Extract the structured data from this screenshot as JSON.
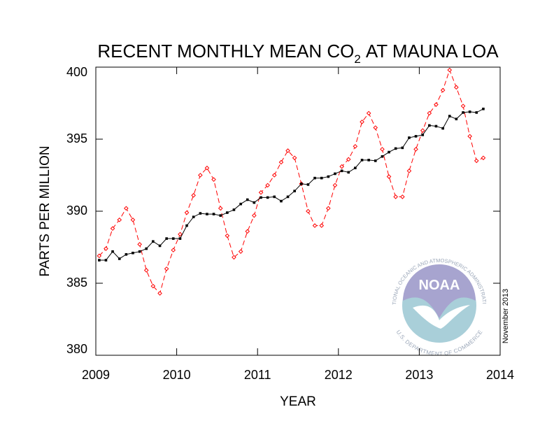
{
  "chart_data": {
    "type": "line",
    "title_main": "RECENT MONTHLY MEAN CO",
    "title_sub": "2",
    "title_end": "AT MAUNA LOA",
    "xlabel": "YEAR",
    "ylabel": "PARTS PER MILLION",
    "note": "November 2013",
    "logo": {
      "name": "NOAA",
      "ring_top": "NATIONAL OCEANIC AND ATMOSPHERIC ADMINISTRATION",
      "ring_bottom": "U.S. DEPARTMENT OF COMMERCE"
    },
    "xlim": [
      2009,
      2014
    ],
    "xticks": [
      2009,
      2010,
      2011,
      2012,
      2013,
      2014
    ],
    "ylim": [
      380,
      400
    ],
    "yticks": [
      380,
      385,
      390,
      395,
      400
    ],
    "x": [
      2009.042,
      2009.125,
      2009.208,
      2009.292,
      2009.375,
      2009.458,
      2009.542,
      2009.625,
      2009.708,
      2009.792,
      2009.875,
      2009.958,
      2010.042,
      2010.125,
      2010.208,
      2010.292,
      2010.375,
      2010.458,
      2010.542,
      2010.625,
      2010.708,
      2010.792,
      2010.875,
      2010.958,
      2011.042,
      2011.125,
      2011.208,
      2011.292,
      2011.375,
      2011.458,
      2011.542,
      2011.625,
      2011.708,
      2011.792,
      2011.875,
      2011.958,
      2012.042,
      2012.125,
      2012.208,
      2012.292,
      2012.375,
      2012.458,
      2012.542,
      2012.625,
      2012.708,
      2012.792,
      2012.875,
      2012.958,
      2013.042,
      2013.125,
      2013.208,
      2013.292,
      2013.375,
      2013.458,
      2013.542,
      2013.625,
      2013.708,
      2013.792
    ],
    "series": [
      {
        "color": "#ff0000",
        "style": "dashed",
        "marker": "diamond",
        "values": [
          386.9,
          387.4,
          388.8,
          389.4,
          390.2,
          389.4,
          387.7,
          385.9,
          384.8,
          384.3,
          386.0,
          387.3,
          388.4,
          389.9,
          391.1,
          392.5,
          393.0,
          392.2,
          390.2,
          388.3,
          386.8,
          387.2,
          388.6,
          389.7,
          391.3,
          391.8,
          392.5,
          393.4,
          394.2,
          393.7,
          391.9,
          390.0,
          389.0,
          389.0,
          390.2,
          391.8,
          393.1,
          393.6,
          394.5,
          396.2,
          396.8,
          395.8,
          394.3,
          392.4,
          391.0,
          391.0,
          392.8,
          394.3,
          395.6,
          396.8,
          397.4,
          398.4,
          399.8,
          398.6,
          397.3,
          395.2,
          393.5,
          393.7
        ]
      },
      {
        "color": "#000000",
        "style": "solid",
        "marker": "square",
        "values": [
          386.6,
          386.6,
          387.2,
          386.7,
          387.0,
          387.1,
          387.2,
          387.4,
          387.9,
          387.6,
          388.1,
          388.1,
          388.1,
          389.0,
          389.6,
          389.85,
          389.8,
          389.8,
          389.7,
          389.9,
          390.1,
          390.5,
          390.8,
          390.6,
          390.95,
          390.95,
          391.0,
          390.7,
          391.0,
          391.4,
          391.9,
          391.85,
          392.3,
          392.3,
          392.4,
          392.6,
          392.8,
          392.7,
          393.0,
          393.55,
          393.55,
          393.5,
          393.8,
          394.1,
          394.35,
          394.4,
          395.1,
          395.2,
          395.3,
          395.95,
          395.9,
          395.75,
          396.6,
          396.4,
          396.85,
          396.9,
          396.85,
          397.1
        ]
      }
    ]
  }
}
